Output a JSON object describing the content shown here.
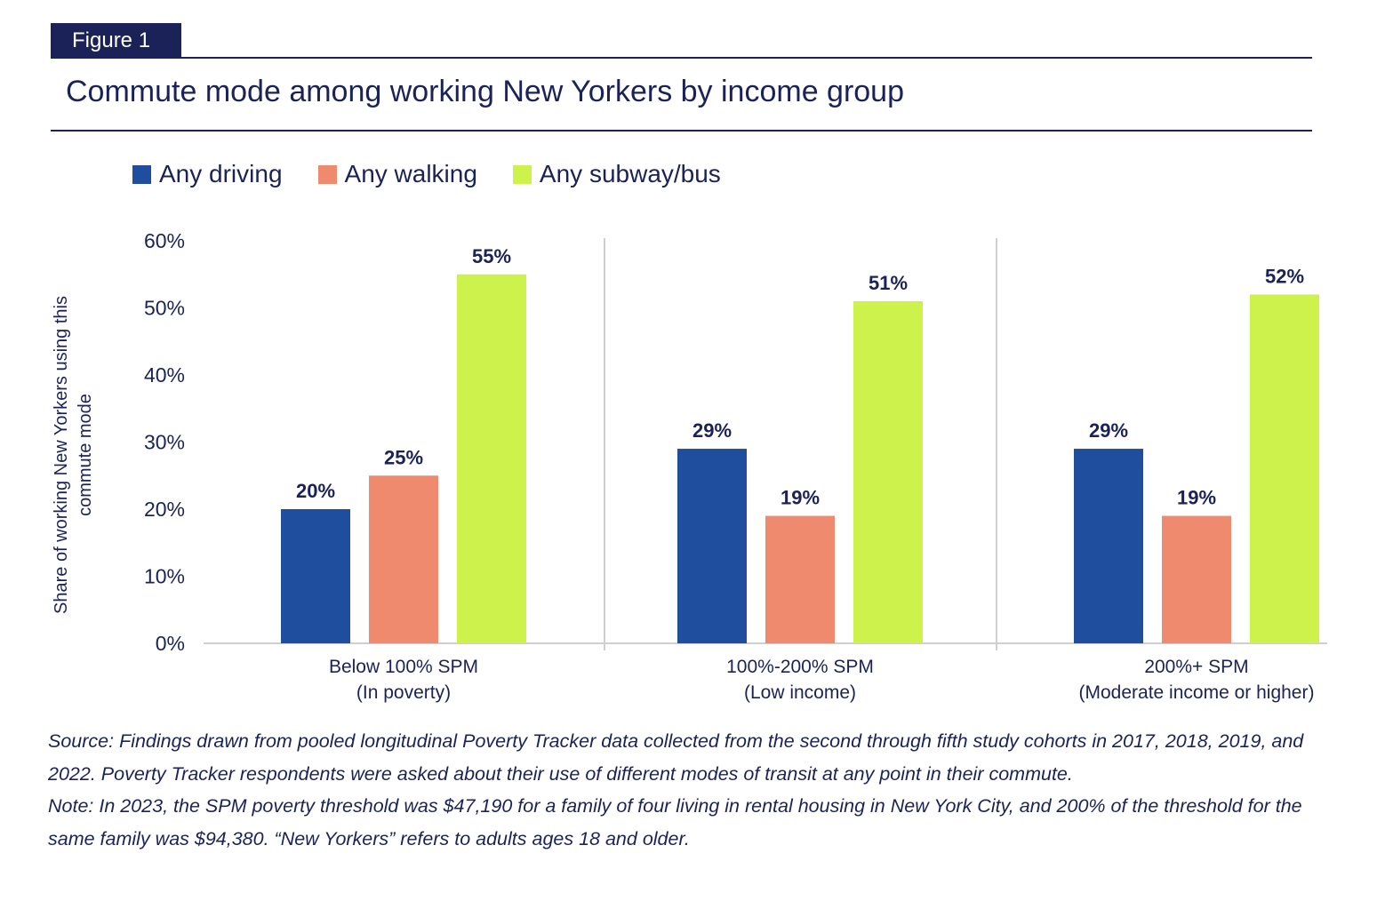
{
  "figure_label": "Figure 1",
  "title": "Commute mode among working New Yorkers by income group",
  "colors": {
    "navy": "#1b2258",
    "driving": "#1f4e9e",
    "walking": "#ef8a6f",
    "subway": "#cdf24b",
    "axis": "#cfcfcf"
  },
  "chart_data": {
    "type": "bar",
    "title": "Commute mode among working New Yorkers by income group",
    "xlabel": "",
    "ylabel": "Share of working New Yorkers using this commute mode",
    "ylim": [
      0,
      60
    ],
    "yticks": [
      "0%",
      "10%",
      "20%",
      "30%",
      "40%",
      "50%",
      "60%"
    ],
    "categories": [
      {
        "line1": "Below 100% SPM",
        "line2": "(In poverty)"
      },
      {
        "line1": "100%-200% SPM",
        "line2": "(Low income)"
      },
      {
        "line1": "200%+ SPM",
        "line2": "(Moderate income or higher)"
      }
    ],
    "series": [
      {
        "name": "Any driving",
        "color": "#1f4e9e",
        "values": [
          20,
          29,
          29
        ],
        "labels": [
          "20%",
          "29%",
          "29%"
        ]
      },
      {
        "name": "Any walking",
        "color": "#ef8a6f",
        "values": [
          25,
          19,
          19
        ],
        "labels": [
          "25%",
          "19%",
          "19%"
        ]
      },
      {
        "name": "Any subway/bus",
        "color": "#cdf24b",
        "values": [
          55,
          51,
          52
        ],
        "labels": [
          "55%",
          "51%",
          "52%"
        ]
      }
    ],
    "legend_position": "top-left",
    "grid": false
  },
  "notes": {
    "source": "Source: Findings drawn from pooled longitudinal Poverty Tracker data collected from the second through fifth study cohorts in 2017, 2018, 2019, and 2022. Poverty Tracker respondents were asked about their use of different modes of transit at any point in their commute.",
    "note": "Note: In 2023, the SPM poverty threshold was $47,190 for a family of four living in rental housing in New York City, and 200% of the threshold for the same family was $94,380. “New Yorkers” refers to adults ages 18 and older."
  }
}
